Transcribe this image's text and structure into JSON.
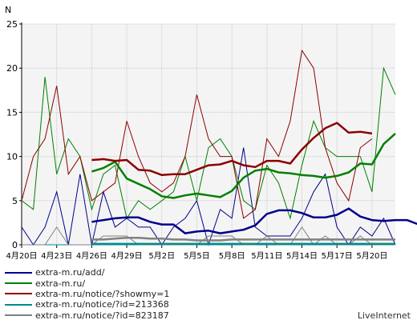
{
  "chart_data": {
    "type": "line",
    "ylabel": "N",
    "ylim": [
      0,
      25
    ],
    "yticks": [
      "0",
      "5",
      "10",
      "15",
      "20",
      "25"
    ],
    "xticklabels": [
      "4月20日",
      "4月23日",
      "4月26日",
      "4月29日",
      "5月2日",
      "5月5日",
      "5月8日",
      "5月11日",
      "5月14日",
      "5月17日",
      "5月20日"
    ],
    "grid": true,
    "legend_position": "bottom-left",
    "series": [
      {
        "name": "extra-m.ru/add/",
        "color": "#00008b",
        "width": 1,
        "values": [
          2,
          0,
          2,
          6,
          0,
          8,
          0,
          6,
          2,
          3,
          2,
          2,
          0,
          2,
          3,
          5,
          0,
          4,
          3,
          11,
          2,
          1,
          1,
          1,
          3,
          6,
          8,
          2,
          0,
          2,
          1,
          3,
          0
        ]
      },
      {
        "name": "extra-m.ru/",
        "color": "#008000",
        "width": 1,
        "values": [
          5,
          4,
          19,
          8,
          12,
          10,
          4,
          8,
          9,
          3,
          5,
          4,
          5,
          6,
          10,
          5,
          11,
          12,
          10,
          5,
          4,
          9,
          7,
          3,
          9,
          14,
          11,
          10,
          10,
          10,
          6,
          20,
          17
        ]
      },
      {
        "name": "extra-m.ru/notice/?showmy=1",
        "color": "#8b0000",
        "width": 1,
        "values": [
          5,
          10,
          12,
          18,
          8,
          10,
          5,
          6,
          7,
          14,
          10,
          7,
          6,
          7,
          10,
          17,
          12,
          10,
          10,
          3,
          4,
          12,
          10,
          14,
          22,
          20,
          11,
          7,
          5,
          11,
          12
        ]
      },
      {
        "name": "extra-m.ru/notice/?id=213368",
        "color": "#008b8b",
        "width": 1,
        "values": [
          0,
          0,
          0,
          0,
          0,
          0,
          0,
          0,
          0,
          0,
          0,
          0,
          0,
          0,
          0,
          0,
          0,
          0,
          0,
          0,
          0,
          0,
          0,
          0,
          0,
          0,
          0,
          0,
          0,
          0,
          0,
          0,
          0
        ]
      },
      {
        "name": "extra-m.ru/notice/?id=823187",
        "color": "#808080",
        "width": 1,
        "values": [
          0,
          0,
          0,
          2,
          0,
          0,
          0,
          1,
          1,
          1,
          0,
          0,
          0,
          0,
          0,
          0,
          1,
          1,
          1,
          0,
          0,
          1,
          0,
          0,
          2,
          0,
          1,
          0,
          0,
          1,
          0,
          0,
          0
        ]
      }
    ],
    "moving_averages": [
      {
        "color": "#00008b",
        "width": 2.5,
        "start": 6,
        "values": [
          2.6,
          2.8,
          3.0,
          3.1,
          3.1,
          2.6,
          2.3,
          2.3,
          1.3,
          1.5,
          1.6,
          1.3,
          1.5,
          1.7,
          2.2,
          3.5,
          3.9,
          3.9,
          3.6,
          3.1,
          3.1,
          3.4,
          4.1,
          3.2,
          2.8,
          2.7,
          2.8,
          2.8,
          2.3
        ]
      },
      {
        "color": "#008000",
        "width": 2.5,
        "start": 6,
        "values": [
          8.3,
          8.7,
          9.4,
          7.5,
          6.9,
          6.3,
          5.5,
          5.3,
          5.6,
          5.8,
          5.6,
          5.4,
          6.1,
          7.6,
          8.4,
          8.6,
          8.2,
          8.1,
          7.9,
          7.8,
          7.6,
          7.8,
          8.2,
          9.2,
          9.1,
          11.4,
          12.6
        ]
      },
      {
        "color": "#8b0000",
        "width": 2.5,
        "start": 6,
        "values": [
          9.6,
          9.7,
          9.5,
          9.6,
          8.5,
          8.4,
          7.9,
          8.0,
          8.0,
          8.5,
          9.0,
          9.1,
          9.5,
          9.0,
          8.8,
          9.5,
          9.5,
          9.2,
          10.8,
          12.1,
          13.2,
          13.8,
          12.7,
          12.8,
          12.6
        ]
      },
      {
        "color": "#008b8b",
        "width": 2.5,
        "start": 6,
        "values": [
          0.1,
          0.1,
          0.1,
          0.1,
          0.1,
          0.1,
          0.1,
          0.1,
          0.1,
          0.1,
          0.1,
          0.1,
          0.1,
          0.1,
          0.1,
          0.1,
          0.1,
          0.1,
          0.1,
          0.1,
          0.1,
          0.1,
          0.1,
          0.1,
          0.1,
          0.1,
          0.1
        ]
      },
      {
        "color": "#808080",
        "width": 2.5,
        "start": 6,
        "values": [
          0.6,
          0.6,
          0.7,
          0.8,
          0.8,
          0.7,
          0.7,
          0.6,
          0.6,
          0.5,
          0.5,
          0.5,
          0.6,
          0.6,
          0.6,
          0.6,
          0.6,
          0.6,
          0.6,
          0.6,
          0.6,
          0.6,
          0.6,
          0.6,
          0.6,
          0.6,
          0.6
        ]
      }
    ]
  },
  "brand": "LiveInternet"
}
